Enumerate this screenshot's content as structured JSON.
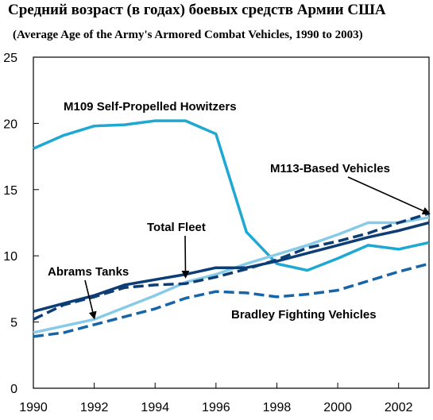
{
  "chart_data": {
    "type": "line",
    "title": "Средний возраст (в годах) боевых средств Армии США",
    "subtitle": "(Average Age of the Army's Armored Combat Vehicles, 1990 to 2003)",
    "xlabel": "",
    "ylabel": "",
    "xlim": [
      1990,
      2003
    ],
    "ylim": [
      0,
      25
    ],
    "x_ticks": [
      "1990",
      "1992",
      "1994",
      "1996",
      "1998",
      "2000",
      "2002"
    ],
    "y_ticks": [
      "0",
      "5",
      "10",
      "15",
      "20",
      "25"
    ],
    "grid": false,
    "x": [
      1990,
      1991,
      1992,
      1993,
      1994,
      1995,
      1996,
      1997,
      1998,
      1999,
      2000,
      2001,
      2002,
      2003
    ],
    "series": [
      {
        "name": "M109 Self-Propelled Howitzers",
        "color": "#1ea8d2",
        "dash": "solid",
        "values": [
          18.1,
          19.1,
          19.8,
          19.9,
          20.2,
          20.2,
          19.2,
          11.8,
          9.4,
          8.9,
          9.8,
          10.8,
          10.5,
          11.0
        ]
      },
      {
        "name": "M113-Based Vehicles",
        "color": "#0d3d75",
        "dash": "dashed",
        "values": [
          5.2,
          6.3,
          6.9,
          7.6,
          7.8,
          7.9,
          8.4,
          9.0,
          9.7,
          10.6,
          11.1,
          11.7,
          12.5,
          13.2
        ]
      },
      {
        "name": "Total Fleet",
        "color": "#0d3d75",
        "dash": "solid",
        "values": [
          5.8,
          6.4,
          7.0,
          7.8,
          8.2,
          8.6,
          9.1,
          9.1,
          9.6,
          10.2,
          10.8,
          11.4,
          11.9,
          12.5
        ]
      },
      {
        "name": "Abrams Tanks",
        "color": "#87cbe8",
        "dash": "solid",
        "values": [
          4.2,
          4.7,
          5.2,
          6.1,
          7.0,
          8.0,
          8.6,
          9.4,
          10.1,
          10.8,
          11.6,
          12.5,
          12.5,
          12.9
        ]
      },
      {
        "name": "Bradley Fighting Vehicles",
        "color": "#1565a8",
        "dash": "dashed",
        "values": [
          3.9,
          4.2,
          4.8,
          5.4,
          6.0,
          6.8,
          7.3,
          7.2,
          6.9,
          7.1,
          7.4,
          8.1,
          8.8,
          9.4
        ]
      }
    ],
    "annotations": [
      {
        "text": "M109 Self-Propelled Howitzers",
        "series": "M109 Self-Propelled Howitzers"
      },
      {
        "text": "M113-Based Vehicles",
        "series": "M113-Based Vehicles",
        "arrow_to": [
          2003,
          13.2
        ]
      },
      {
        "text": "Total Fleet",
        "series": "Total Fleet",
        "arrow_to": [
          1995,
          8.4
        ]
      },
      {
        "text": "Abrams Tanks",
        "series": "Abrams Tanks",
        "arrow_to": [
          1992,
          5.3
        ]
      },
      {
        "text": "Bradley Fighting Vehicles",
        "series": "Bradley Fighting Vehicles"
      }
    ]
  }
}
